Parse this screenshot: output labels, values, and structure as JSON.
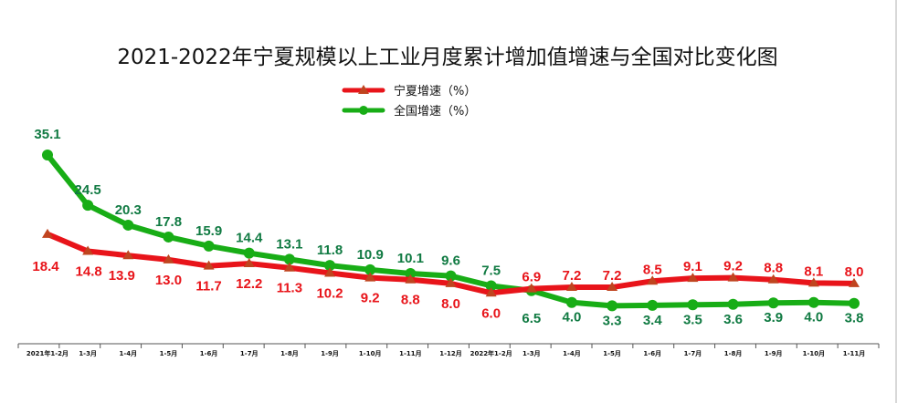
{
  "chart_data": {
    "type": "line",
    "title": "2021-2022年宁夏规模以上工业月度累计增加值增速与全国对比变化图",
    "categories": [
      "2021年1-2月",
      "1-3月",
      "1-4月",
      "1-5月",
      "1-6月",
      "1-7月",
      "1-8月",
      "1-9月",
      "1-10月",
      "1-11月",
      "1-12月",
      "2022年1-2月",
      "1-3月",
      "1-4月",
      "1-5月",
      "1-6月",
      "1-7月",
      "1-8月",
      "1-9月",
      "1-10月",
      "1-11月"
    ],
    "series": [
      {
        "name": "宁夏增速（%）",
        "color": "#e8141a",
        "marker": "triangle",
        "values": [
          18.4,
          14.8,
          13.9,
          13.0,
          11.7,
          12.2,
          11.3,
          10.2,
          9.2,
          8.8,
          8.0,
          6.0,
          6.9,
          7.2,
          7.2,
          8.5,
          9.1,
          9.2,
          8.8,
          8.1,
          8.0
        ]
      },
      {
        "name": "全国增速（%）",
        "color": "#18ad16",
        "marker": "circle",
        "values": [
          35.1,
          24.5,
          20.3,
          17.8,
          15.9,
          14.4,
          13.1,
          11.8,
          10.9,
          10.1,
          9.6,
          7.5,
          6.5,
          4.0,
          3.3,
          3.4,
          3.5,
          3.6,
          3.9,
          4.0,
          3.8
        ]
      }
    ],
    "label_colors": {
      "宁夏增速（%）": "#e8141a",
      "全国增速（%）": "#107a42"
    },
    "legend_position": "top-center",
    "grid": false
  }
}
